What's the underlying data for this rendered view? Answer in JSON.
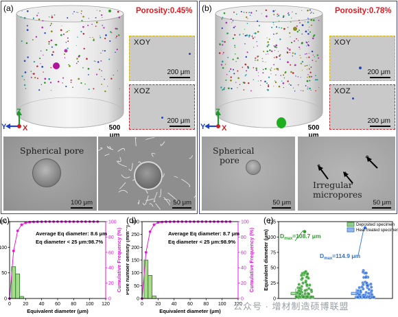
{
  "panel_a": {
    "label": "(a)",
    "porosity": "Porosity:0.45%",
    "scale_main": "500 μm",
    "inset_top": {
      "title": "XOY",
      "scale": "200 μm"
    },
    "inset_bottom": {
      "title": "XOZ",
      "scale": "200 μm"
    },
    "sem_left": {
      "caption": "Spherical pore",
      "scale": "100 μm"
    },
    "sem_right": {
      "scale": "50 μm"
    },
    "axes": {
      "z": "Z",
      "y": "Y",
      "x": "X"
    }
  },
  "panel_b": {
    "label": "(b)",
    "porosity": "Porosity:0.78%",
    "scale_main": "500 μm",
    "inset_top": {
      "title": "XOY",
      "scale": "200 μm"
    },
    "inset_bottom": {
      "title": "XOZ",
      "scale": "200 μm"
    },
    "sem_left": {
      "caption_line1": "Spherical",
      "caption_line2": "pore",
      "scale": "50 μm"
    },
    "sem_right": {
      "caption_line1": "Irregular",
      "caption_line2": "micropores",
      "scale": "50 μm"
    },
    "axes": {
      "z": "Z",
      "y": "Y",
      "x": "X"
    }
  },
  "watermark": "公众号 · 增材制造硕博联盟",
  "colors": {
    "frame": "#3a3fb0",
    "porosity_text": "#e8141c",
    "inset_xoy_border": "#d8b200",
    "inset_xoz_border": "#c0262e",
    "bar_green": "#2e9a2a",
    "cumulative_magenta": "#e01ad8"
  },
  "chart_data": [
    {
      "id": "c",
      "panel_label": "(c)",
      "type": "bar",
      "x": [
        5,
        10,
        15
      ],
      "values": [
        62,
        48,
        4
      ],
      "cumulative_y": [
        0,
        62,
        88,
        96,
        98.5,
        99.3,
        99.6,
        99.8,
        99.9,
        100,
        100,
        100,
        100,
        100,
        100,
        100,
        100,
        100,
        100,
        100,
        100,
        100,
        100
      ],
      "cumulative_x": [
        0,
        5,
        10,
        15,
        20,
        25,
        30,
        35,
        40,
        45,
        50,
        55,
        60,
        65,
        70,
        75,
        80,
        85,
        90,
        95,
        100,
        105,
        110
      ],
      "xlabel": "Equivalent diameter (μm)",
      "ylabel": "Pore number density",
      "y2label": "Cumulative Frequency (%)",
      "xlim": [
        0,
        120
      ],
      "ylim": [
        0,
        150
      ],
      "y2lim": [
        0,
        100
      ],
      "xticks": [
        "0",
        "20",
        "40",
        "60",
        "80",
        "100",
        "120"
      ],
      "yticks": [
        "0",
        "50",
        "100",
        "150"
      ],
      "y2ticks": [
        "0",
        "20",
        "40",
        "60",
        "80",
        "100"
      ],
      "annotations": [
        "Average Eq diameter: 8.6 μm",
        "Eq diameter < 25 μm:98.7%"
      ]
    },
    {
      "id": "d",
      "panel_label": "(d)",
      "type": "bar",
      "x": [
        5,
        10,
        15
      ],
      "values": [
        150,
        90,
        10
      ],
      "cumulative_y": [
        0,
        60,
        87,
        96,
        98.9,
        99.5,
        99.8,
        99.9,
        100,
        100,
        100,
        100,
        100,
        100,
        100,
        100,
        100,
        100,
        100,
        100,
        100,
        100,
        100
      ],
      "cumulative_x": [
        0,
        5,
        10,
        15,
        20,
        25,
        30,
        35,
        40,
        45,
        50,
        55,
        60,
        65,
        70,
        75,
        80,
        85,
        90,
        95,
        100,
        105,
        110
      ],
      "xlabel": "Equivalent diameter (μm)",
      "ylabel": "Pore number density (mm⁻³)",
      "y2label": "Cumulative Frequency (%)",
      "xlim": [
        0,
        120
      ],
      "ylim": [
        0,
        300
      ],
      "y2lim": [
        0,
        100
      ],
      "xticks": [
        "0",
        "20",
        "40",
        "60",
        "80",
        "100",
        "120"
      ],
      "yticks": [
        "0",
        "50",
        "100",
        "150",
        "200",
        "250",
        "300"
      ],
      "y2ticks": [
        "0",
        "20",
        "40",
        "60",
        "80",
        "100"
      ],
      "annotations": [
        "Average Eq diameter: 8.7 μm",
        "Eq diameter < 25 μm:98.9%"
      ]
    },
    {
      "id": "e",
      "panel_label": "(e)",
      "type": "scatter",
      "ylabel": "Equivalent diameter (μm)",
      "ylim": [
        0,
        125
      ],
      "yticks": [
        "0",
        "25",
        "50",
        "75",
        "100",
        "125"
      ],
      "series": [
        {
          "name": "Deposited specimen",
          "color": "#2e9a2a",
          "max_label": "D",
          "max_sub": "max",
          "max_value": "=108.7 μm",
          "max": 108.7
        },
        {
          "name": "Heat treated specimen",
          "color": "#2f6fd8",
          "max_label": "D",
          "max_sub": "max",
          "max_value": "=114.9 μm",
          "max": 114.9
        }
      ]
    }
  ]
}
